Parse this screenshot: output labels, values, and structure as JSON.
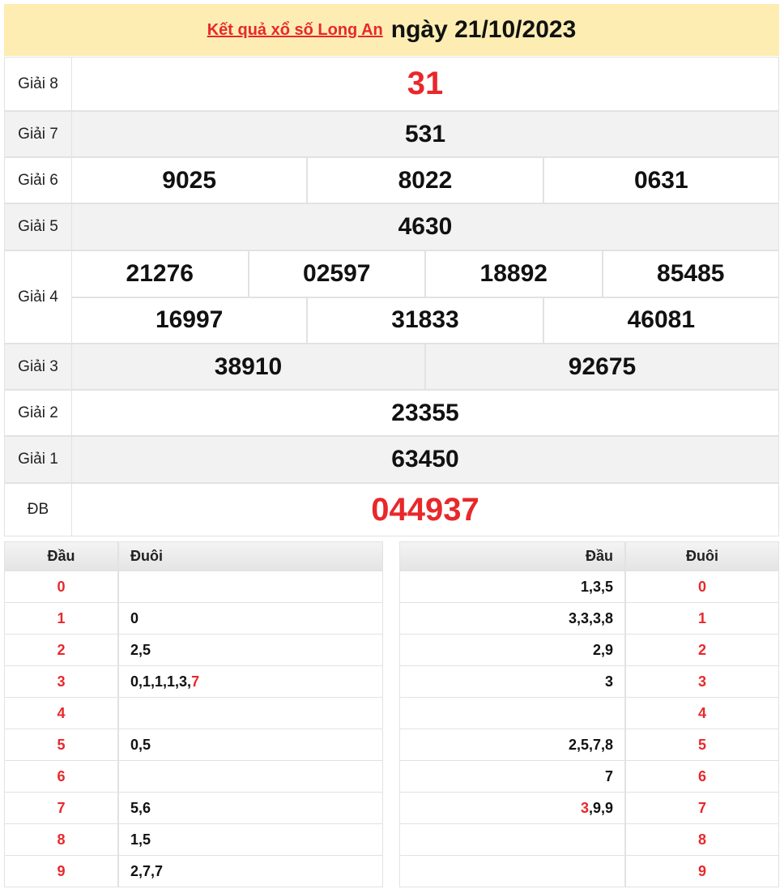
{
  "header": {
    "link_text": "Kết quả xổ số Long An",
    "date_text": "ngày 21/10/2023"
  },
  "special_color": "#e8282b",
  "prizes": [
    {
      "label": "Giải 8",
      "rows": [
        [
          "31"
        ]
      ],
      "color": "#e8282b"
    },
    {
      "label": "Giải 7",
      "rows": [
        [
          "531"
        ]
      ]
    },
    {
      "label": "Giải 6",
      "rows": [
        [
          "9025",
          "8022",
          "0631"
        ]
      ]
    },
    {
      "label": "Giải 5",
      "rows": [
        [
          "4630"
        ]
      ]
    },
    {
      "label": "Giải 4",
      "rows": [
        [
          "21276",
          "02597",
          "18892",
          "85485"
        ],
        [
          "16997",
          "31833",
          "46081"
        ]
      ]
    },
    {
      "label": "Giải 3",
      "rows": [
        [
          "38910",
          "92675"
        ]
      ]
    },
    {
      "label": "Giải 2",
      "rows": [
        [
          "23355"
        ]
      ]
    },
    {
      "label": "Giải 1",
      "rows": [
        [
          "63450"
        ]
      ]
    },
    {
      "label": "ĐB",
      "rows": [
        [
          "044937"
        ]
      ],
      "color": "#e8282b"
    }
  ],
  "loto": [
    {
      "headers": [
        "Đầu",
        "Đuôi"
      ],
      "rows": [
        {
          "head": "0",
          "tail": null
        },
        {
          "head": "1",
          "tail": "0"
        },
        {
          "head": "2",
          "tail": "2,5"
        },
        {
          "head": "3",
          "tail": "0,1,1,1,3,",
          "tail_special": "7"
        },
        {
          "head": "4",
          "tail": null
        },
        {
          "head": "5",
          "tail": "0,5"
        },
        {
          "head": "6",
          "tail": null
        },
        {
          "head": "7",
          "tail": "5,6"
        },
        {
          "head": "8",
          "tail": "1,5"
        },
        {
          "head": "9",
          "tail": "2,7,7"
        }
      ]
    },
    {
      "headers": [
        "Đầu",
        "Đuôi"
      ],
      "rows": [
        {
          "head": "1,3,5",
          "tail": "0"
        },
        {
          "head": "3,3,3,8",
          "tail": "1"
        },
        {
          "head": "2,9",
          "tail": "2"
        },
        {
          "head": "3",
          "tail": "3"
        },
        {
          "head": null,
          "tail": "4"
        },
        {
          "head": "2,5,7,8",
          "tail": "5"
        },
        {
          "head": "7",
          "tail": "6"
        },
        {
          "head_special": "3",
          "head": ",9,9",
          "tail": "7"
        },
        {
          "head": null,
          "tail": "8"
        },
        {
          "head": null,
          "tail": "9"
        }
      ]
    }
  ]
}
